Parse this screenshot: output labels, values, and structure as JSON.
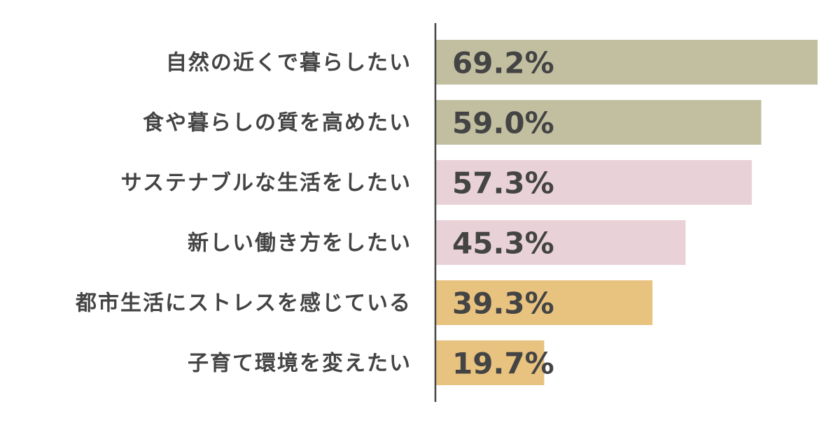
{
  "chart_data": {
    "type": "barh",
    "categories": [
      "自然の近くで暮らしたい",
      "食や暮らしの質を高めたい",
      "サステナブルな生活をしたい",
      "新しい働き方をしたい",
      "都市生活にストレスを感じている",
      "子育て環境を変えたい"
    ],
    "values": [
      69.2,
      59.0,
      57.3,
      45.3,
      39.3,
      19.7
    ],
    "value_labels": [
      "69.2%",
      "59.0%",
      "57.3%",
      "45.3%",
      "39.3%",
      "19.7%"
    ],
    "colors": [
      "#c2bfa1",
      "#c2bfa1",
      "#e8d2d7",
      "#e8d2d7",
      "#e8c27f",
      "#e8c27f"
    ]
  }
}
